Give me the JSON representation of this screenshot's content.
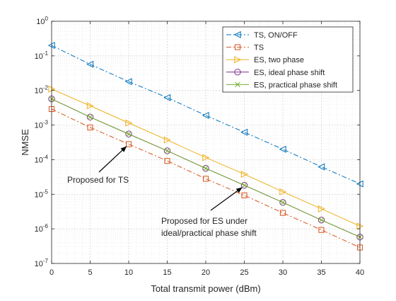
{
  "chart_data": {
    "type": "line",
    "xlabel": "Total transmit power (dBm)",
    "ylabel": "NMSE",
    "xlim": [
      0,
      40
    ],
    "ylim": [
      1e-07,
      1
    ],
    "yscale": "log",
    "grid": true,
    "minor_grid": true,
    "legend_position": "top-right",
    "x_ticks": [
      0,
      5,
      10,
      15,
      20,
      25,
      30,
      35,
      40
    ],
    "y_tick_exponents": [
      0,
      -1,
      -2,
      -3,
      -4,
      -5,
      -6,
      -7
    ],
    "y_tick_base": "10",
    "x": [
      0,
      5,
      10,
      15,
      20,
      25,
      30,
      35,
      40
    ],
    "series": [
      {
        "name": "TS, ON/OFF",
        "color": "#0072BD",
        "marker": "triangle-left",
        "linestyle": "dashdot",
        "values": [
          0.2,
          0.057,
          0.018,
          0.0062,
          0.0019,
          0.00062,
          0.0002,
          6.2e-05,
          2e-05
        ]
      },
      {
        "name": "TS",
        "color": "#D95319",
        "marker": "square",
        "linestyle": "dashdot",
        "values": [
          0.0029,
          0.00085,
          0.00028,
          9.2e-05,
          2.8e-05,
          9.3e-06,
          2.9e-06,
          9.3e-07,
          2.9e-07
        ]
      },
      {
        "name": "ES, two phase",
        "color": "#EDB120",
        "marker": "triangle-right",
        "linestyle": "solid",
        "values": [
          0.011,
          0.0036,
          0.00115,
          0.00037,
          0.000115,
          3.8e-05,
          1.18e-05,
          3.8e-06,
          1.2e-06
        ]
      },
      {
        "name": "ES, ideal phase shift",
        "color": "#7E2F8E",
        "marker": "circle",
        "linestyle": "solid",
        "values": [
          0.0057,
          0.0017,
          0.00055,
          0.00018,
          5.6e-05,
          1.82e-05,
          5.8e-06,
          1.8e-06,
          5.8e-07
        ]
      },
      {
        "name": "ES, practical phase shift",
        "color": "#77AC30",
        "marker": "x",
        "linestyle": "solid",
        "values": [
          0.0057,
          0.0017,
          0.00055,
          0.00018,
          5.6e-05,
          1.82e-05,
          5.8e-06,
          1.8e-06,
          5.8e-07
        ]
      }
    ],
    "annotations": [
      {
        "text_lines": [
          "Proposed for TS"
        ],
        "target_x": 10,
        "target_y": 0.00028
      },
      {
        "text_lines": [
          "Proposed for ES under",
          "ideal/practical phase shift"
        ],
        "target_x": 25,
        "target_y": 1.82e-05
      }
    ]
  }
}
